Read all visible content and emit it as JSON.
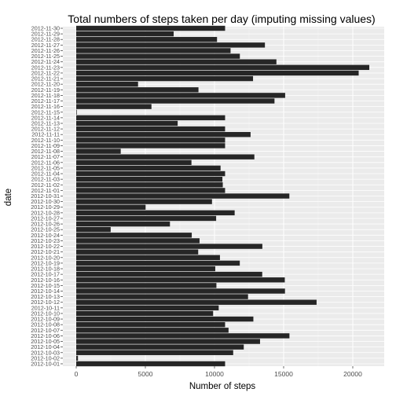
{
  "chart_data": {
    "type": "bar",
    "orientation": "horizontal",
    "title": "Total numbers of steps taken per day (imputing missing values)",
    "xlabel": "Number of steps",
    "ylabel": "date",
    "xlim": [
      0,
      21194
    ],
    "xticks": [
      0,
      5000,
      10000,
      15000,
      20000
    ],
    "xtick_labels": [
      "0",
      "5000",
      "10000",
      "15000",
      "20000"
    ],
    "grid": true,
    "legend": "none",
    "colors": {
      "bar": "#262626",
      "panel": "#ebebeb",
      "grid_major": "#ffffff",
      "grid_minor": "#f5f5f5"
    },
    "categories": [
      "2012-10-01",
      "2012-10-02",
      "2012-10-03",
      "2012-10-04",
      "2012-10-05",
      "2012-10-06",
      "2012-10-07",
      "2012-10-08",
      "2012-10-09",
      "2012-10-10",
      "2012-10-11",
      "2012-10-12",
      "2012-10-13",
      "2012-10-14",
      "2012-10-15",
      "2012-10-16",
      "2012-10-17",
      "2012-10-18",
      "2012-10-19",
      "2012-10-20",
      "2012-10-21",
      "2012-10-22",
      "2012-10-23",
      "2012-10-24",
      "2012-10-25",
      "2012-10-26",
      "2012-10-27",
      "2012-10-28",
      "2012-10-29",
      "2012-10-30",
      "2012-10-31",
      "2012-11-01",
      "2012-11-02",
      "2012-11-03",
      "2012-11-04",
      "2012-11-05",
      "2012-11-06",
      "2012-11-07",
      "2012-11-08",
      "2012-11-09",
      "2012-11-10",
      "2012-11-11",
      "2012-11-12",
      "2012-11-13",
      "2012-11-14",
      "2012-11-15",
      "2012-11-16",
      "2012-11-17",
      "2012-11-18",
      "2012-11-19",
      "2012-11-20",
      "2012-11-21",
      "2012-11-22",
      "2012-11-23",
      "2012-11-24",
      "2012-11-25",
      "2012-11-26",
      "2012-11-27",
      "2012-11-28",
      "2012-11-29",
      "2012-11-30"
    ],
    "values": [
      10766,
      126,
      11352,
      12116,
      13294,
      15420,
      11015,
      10766,
      12811,
      9900,
      10304,
      17382,
      12426,
      15098,
      10139,
      15084,
      13452,
      10056,
      11829,
      10395,
      8821,
      13460,
      8918,
      8355,
      2492,
      6778,
      10119,
      11458,
      5018,
      9819,
      15414,
      10766,
      10600,
      10571,
      10766,
      10439,
      8334,
      12883,
      3219,
      10766,
      10766,
      12608,
      10765,
      7336,
      10766,
      41,
      5441,
      14339,
      15110,
      8841,
      4472,
      12787,
      20427,
      21194,
      14478,
      11834,
      11162,
      13646,
      10183,
      7047,
      10766
    ]
  }
}
